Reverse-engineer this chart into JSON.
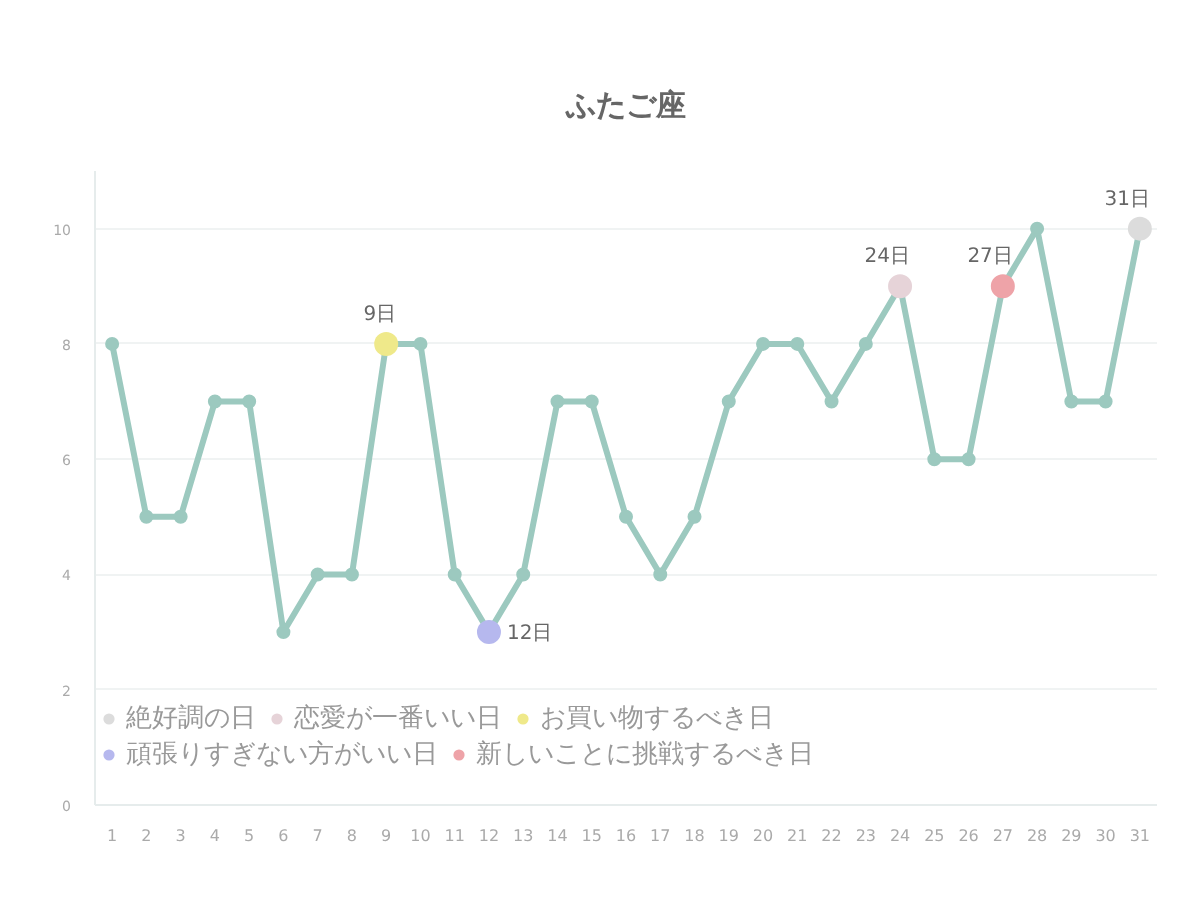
{
  "chart_data": {
    "type": "line",
    "title": "ふたご座",
    "x": [
      1,
      2,
      3,
      4,
      5,
      6,
      7,
      8,
      9,
      10,
      11,
      12,
      13,
      14,
      15,
      16,
      17,
      18,
      19,
      20,
      21,
      22,
      23,
      24,
      25,
      26,
      27,
      28,
      29,
      30,
      31
    ],
    "xlim": [
      0.5,
      31.5
    ],
    "xticks": [
      1,
      2,
      3,
      4,
      5,
      6,
      7,
      8,
      9,
      10,
      11,
      12,
      13,
      14,
      15,
      16,
      17,
      18,
      19,
      20,
      21,
      22,
      23,
      24,
      25,
      26,
      27,
      28,
      29,
      30,
      31
    ],
    "ylim": [
      0,
      11
    ],
    "yticks": [
      0,
      2,
      4,
      6,
      8,
      10
    ],
    "grid": "y",
    "legend": "bottom left",
    "marker": "circle",
    "line_style": "solid",
    "series": [
      {
        "color": "#9cc9bf",
        "values": [
          8,
          5,
          5,
          7,
          7,
          3,
          4,
          4,
          8,
          8,
          4,
          3,
          4,
          7,
          7,
          5,
          4,
          5,
          7,
          8,
          8,
          7,
          8,
          9,
          6,
          6,
          9,
          10,
          7,
          7,
          10
        ]
      },
      {
        "name": "絶好調の日",
        "type": "scatter",
        "color": "#dcdcdc",
        "x": [
          31
        ],
        "values": [
          10
        ]
      },
      {
        "name": "恋愛が一番いい日",
        "type": "scatter",
        "color": "#e6d3d8",
        "x": [
          24
        ],
        "values": [
          9
        ]
      },
      {
        "name": "お買い物するべき日",
        "type": "scatter",
        "color": "#efe98a",
        "x": [
          9
        ],
        "values": [
          8
        ]
      },
      {
        "name": "頑張りすぎない方がいい日",
        "type": "scatter",
        "color": "#b6b8ee",
        "x": [
          12
        ],
        "values": [
          3
        ]
      },
      {
        "name": "新しいことに挑戦するべき日",
        "type": "scatter",
        "color": "#eea3a8",
        "x": [
          27
        ],
        "values": [
          9
        ]
      }
    ],
    "annotations": [
      {
        "text": "9日",
        "x": 9,
        "y": 8
      },
      {
        "text": "12日",
        "x": 12,
        "y": 3
      },
      {
        "text": "24日",
        "x": 24,
        "y": 9
      },
      {
        "text": "27日",
        "x": 27,
        "y": 9
      },
      {
        "text": "31日",
        "x": 31,
        "y": 10
      }
    ]
  }
}
